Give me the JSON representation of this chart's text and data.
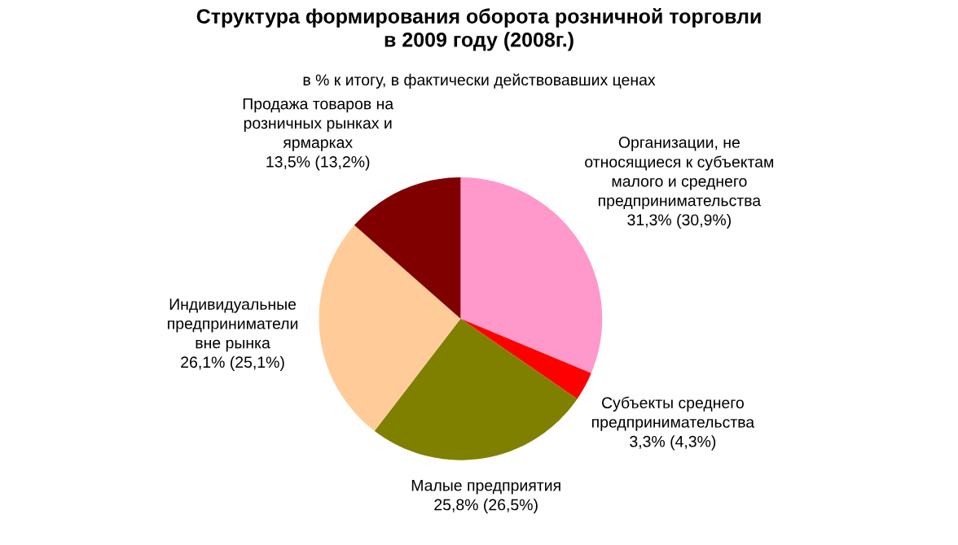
{
  "chart_data": {
    "type": "pie",
    "title": "Структура формирования оборота розничной торговли\nв 2009 году (2008г.)",
    "subtitle": "в % к итогу, в фактически действовавших ценах",
    "categories": [
      "Организации, не\nотносящиеся к субъектам\nмалого и среднего\nпредпринимательства",
      "Субъекты среднего\nпредпринимательства",
      "Малые предприятия",
      "Индивидуальные\nпредприниматели\nвне рынка",
      "Продажа товаров на\nрозничных рынках и\nярмарках"
    ],
    "values": [
      31.3,
      3.3,
      25.8,
      26.1,
      13.5
    ],
    "value_labels": [
      "31,3% (30,9%)",
      "3,3% (4,3%)",
      "25,8% (26,5%)",
      "26,1% (25,1%)",
      "13,5% (13,2%)"
    ],
    "colors": [
      "#ff99cc",
      "#ff0000",
      "#808000",
      "#ffcc99",
      "#800000"
    ]
  }
}
